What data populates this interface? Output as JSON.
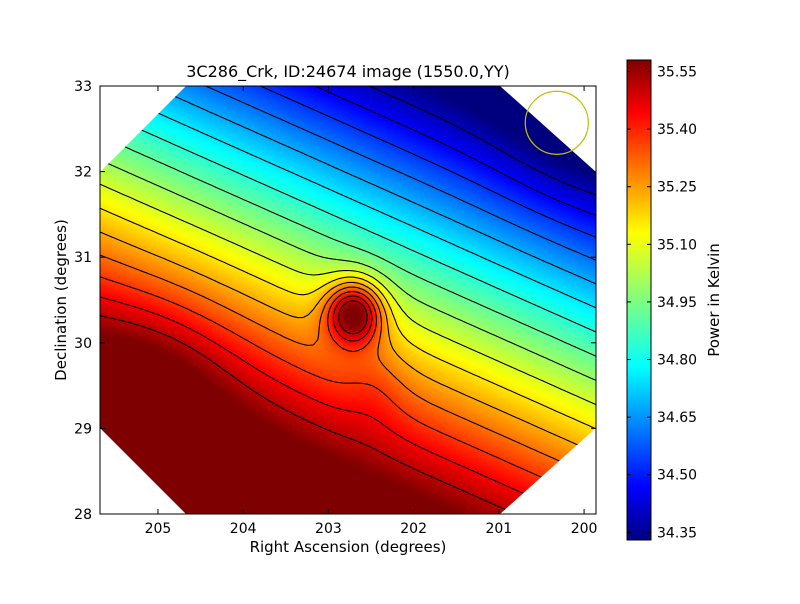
{
  "chart_data": {
    "type": "heatmap",
    "title": "3C286_Crk, ID:24674 image (1550.0,YY)",
    "xlabel": "Right Ascension (degrees)",
    "ylabel": "Declination (degrees)",
    "colorbar_label": "Power in Kelvin",
    "xlim": [
      205.68,
      199.86
    ],
    "ylim": [
      28,
      33
    ],
    "x_ticks": [
      205,
      204,
      203,
      202,
      201,
      200
    ],
    "y_ticks": [
      28,
      29,
      30,
      31,
      32,
      33
    ],
    "colorbar_range": [
      34.33,
      35.58
    ],
    "colorbar_ticks": [
      "35.55",
      "35.40",
      "35.25",
      "35.10",
      "34.95",
      "34.80",
      "34.65",
      "34.50",
      "34.35"
    ],
    "colormap": "jet",
    "peak": {
      "ra": 202.7,
      "dec": 30.35,
      "value": 35.58
    },
    "min_region": {
      "ra": 200.0,
      "dec": 32.8,
      "value": 34.33
    },
    "contour_levels": 16,
    "beam_circle": {
      "ra": 200.32,
      "dec": 32.57,
      "radius_deg": 0.37,
      "color": "#bfbf00"
    }
  }
}
